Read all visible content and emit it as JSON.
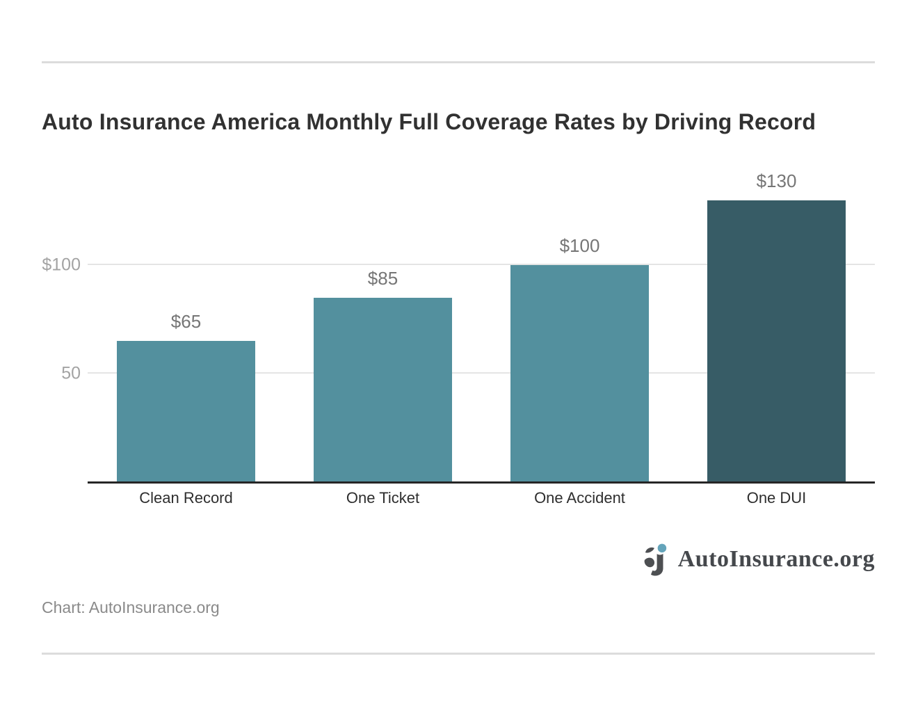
{
  "chart_data": {
    "type": "bar",
    "title": "Auto Insurance America Monthly Full Coverage Rates by Driving Record",
    "categories": [
      "Clean Record",
      "One Ticket",
      "One Accident",
      "One DUI"
    ],
    "values": [
      65,
      85,
      100,
      130
    ],
    "value_labels": [
      "$65",
      "$85",
      "$100",
      "$130"
    ],
    "y_ticks": [
      {
        "label": "$100",
        "value": 100
      },
      {
        "label": "50",
        "value": 50
      }
    ],
    "ylim": [
      0,
      148
    ],
    "xlabel": "",
    "ylabel": "",
    "grid": "horizontal",
    "legend": "none",
    "bar_colors": [
      "#53909e",
      "#53909e",
      "#53909e",
      "#375c66"
    ]
  },
  "credit": {
    "text": "Chart: AutoInsurance.org"
  },
  "logo": {
    "text": "AutoInsurance.org"
  },
  "colors": {
    "bar_light": "#53909e",
    "bar_dark": "#375c66",
    "logo_dot": "#64a4ba",
    "logo_glyph": "#4d4f52",
    "gridline": "#e4e4e4",
    "axis_line": "#262626",
    "title_text": "#313131",
    "tick_label": "#a3a3a3",
    "value_label": "#767676",
    "category_label": "#2e2e2e",
    "divider": "#dcdcdc"
  }
}
